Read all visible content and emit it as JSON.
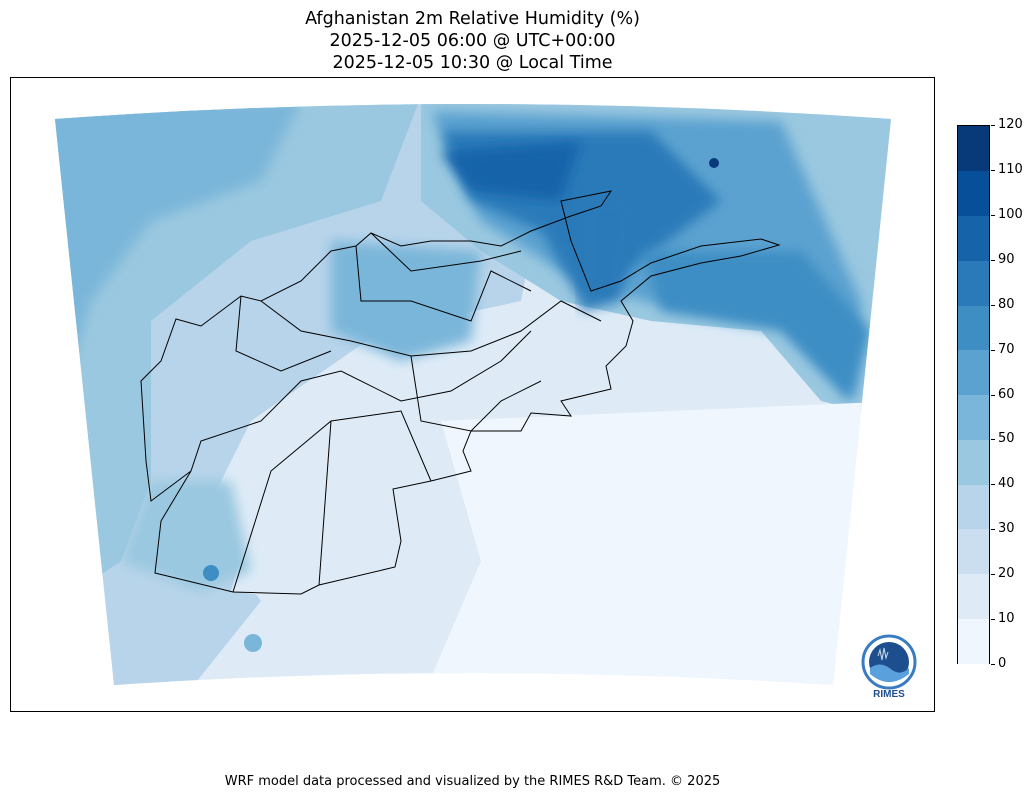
{
  "title": {
    "line1": "Afghanistan 2m Relative Humidity (%)",
    "line2": "2025-12-05 06:00 @ UTC+00:00",
    "line3": "2025-12-05 10:30 @ Local Time"
  },
  "colorbar": {
    "ticks": [
      "0",
      "10",
      "20",
      "30",
      "40",
      "50",
      "60",
      "70",
      "80",
      "90",
      "100",
      "110",
      "120"
    ],
    "colors": [
      "#f0f6fd",
      "#deebf7",
      "#cadef0",
      "#b7d4ea",
      "#9ac8e0",
      "#7ab6d9",
      "#5ba2d0",
      "#3e8ec4",
      "#2a7ab9",
      "#1763aa",
      "#084f9a",
      "#083a7a"
    ]
  },
  "logo": {
    "text": "RIMES",
    "ring_text": "Regional Integrated Multi-Hazard Early Warning System"
  },
  "footer": "WRF model data processed and visualized by the RIMES R&D Team. © 2025"
}
